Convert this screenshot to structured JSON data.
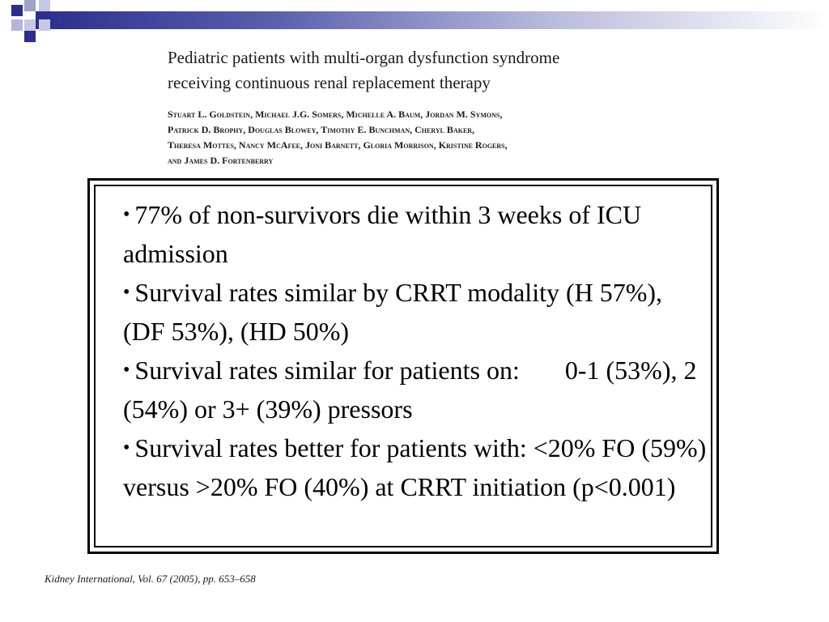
{
  "header": {
    "title_line1": "Pediatric patients with multi-organ dysfunction syndrome",
    "title_line2": "receiving continuous renal replacement therapy",
    "authors_line1": "Stuart L. Goldstein, Michael J.G. Somers, Michelle A. Baum, Jordan M. Symons,",
    "authors_line2": "Patrick D. Brophy, Douglas Blowey, Timothy E. Bunchman, Cheryl Baker,",
    "authors_line3": "Theresa Mottes, Nancy McAfee, Joni Barnett, Gloria Morrison, Kristine Rogers,",
    "authors_line4": "and James D. Fortenberry"
  },
  "bullets": [
    {
      "marker": "•",
      "text": "77% of non-survivors die within 3 weeks of ICU admission"
    },
    {
      "marker": "•",
      "text": "Survival rates similar by CRRT modality (H 57%), (DF 53%), (HD 50%)"
    },
    {
      "marker": "•",
      "text": "Survival rates similar for patients on:       0-1 (53%), 2 (54%) or 3+ (39%) pressors"
    },
    {
      "marker": "•",
      "text": "Survival rates better for patients with: <20% FO (59%) versus >20% FO (40%) at CRRT initiation (p<0.001)"
    }
  ],
  "citation": "Kidney International, Vol. 67 (2005), pp. 653–658",
  "colors": {
    "accent_dark": "#2b2e8c",
    "accent_light": "#c7c9e3"
  }
}
